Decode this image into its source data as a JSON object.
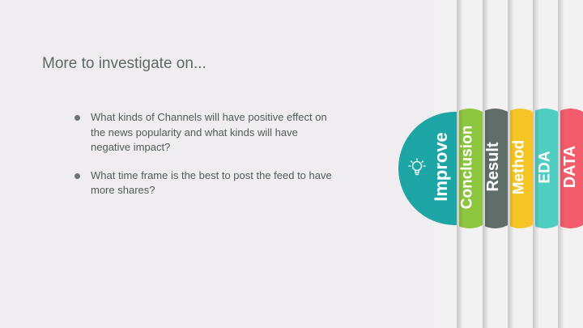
{
  "slide": {
    "title": "More to investigate on...",
    "bullets": [
      "What kinds of Channels will have positive effect on the news popularity and what kinds will have negative impact?",
      "What time frame is the best to post the feed to have more shares?"
    ]
  },
  "tabs": [
    {
      "label": "Improve",
      "color": "#1ea5a6"
    },
    {
      "label": "Conclusion",
      "color": "#8cc63e"
    },
    {
      "label": "Result",
      "color": "#5f6e69"
    },
    {
      "label": "Method",
      "color": "#f5c526"
    },
    {
      "label": "EDA",
      "color": "#4ecdc0"
    },
    {
      "label": "DATA",
      "color": "#f25c6b"
    }
  ],
  "icons": {
    "improve": "lightbulb-icon",
    "bullet": "bullet-dot"
  }
}
